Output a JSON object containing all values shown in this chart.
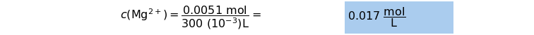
{
  "highlight_color": "#aaccee",
  "text_color": "#000000",
  "bg_color": "#ffffff",
  "fontsize": 11.5,
  "formula": "$c(\\mathrm{Mg}^{2+}) = \\dfrac{0.0051\\ \\mathrm{mol}}{300\\ (10^{-3})\\mathrm{L}} = $",
  "result": "$0.017\\ \\dfrac{\\mathrm{mol}}{\\mathrm{L}}$",
  "figwidth": 7.56,
  "figheight": 0.5
}
